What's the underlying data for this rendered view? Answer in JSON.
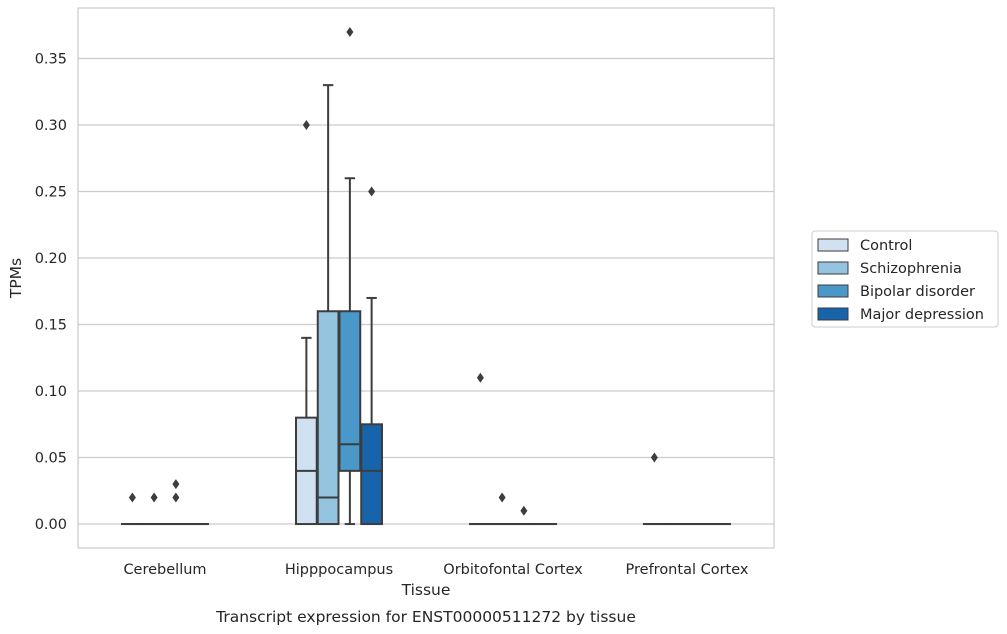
{
  "chart_data": {
    "type": "box",
    "title": "",
    "caption": "Transcript expression for ENST00000511272 by tissue",
    "xlabel": "Tissue",
    "ylabel": "TPMs",
    "ylim": [
      -0.018,
      0.388
    ],
    "yticks": [
      "0.00",
      "0.05",
      "0.10",
      "0.15",
      "0.20",
      "0.25",
      "0.30",
      "0.35"
    ],
    "grid": "horizontal",
    "legend_position": "right",
    "categories": [
      "Cerebellum",
      "Hipppocampus",
      "Orbitofontal Cortex",
      "Prefrontal Cortex"
    ],
    "series": [
      {
        "name": "Control",
        "color": "#d0e1f2",
        "boxes": [
          {
            "q1": 0,
            "median": 0,
            "q3": 0,
            "whisker_low": 0,
            "whisker_high": 0,
            "outliers": [
              0.02
            ]
          },
          {
            "q1": 0,
            "median": 0.04,
            "q3": 0.08,
            "whisker_low": 0,
            "whisker_high": 0.14,
            "outliers": [
              0.3
            ]
          },
          {
            "q1": 0,
            "median": 0,
            "q3": 0,
            "whisker_low": 0,
            "whisker_high": 0,
            "outliers": [
              0.11
            ]
          },
          {
            "q1": 0,
            "median": 0,
            "q3": 0,
            "whisker_low": 0,
            "whisker_high": 0,
            "outliers": [
              0.05
            ]
          }
        ]
      },
      {
        "name": "Schizophrenia",
        "color": "#94c4df",
        "boxes": [
          {
            "q1": 0,
            "median": 0,
            "q3": 0,
            "whisker_low": 0,
            "whisker_high": 0,
            "outliers": [
              0.02
            ]
          },
          {
            "q1": 0,
            "median": 0.02,
            "q3": 0.16,
            "whisker_low": 0,
            "whisker_high": 0.33,
            "outliers": []
          },
          {
            "q1": 0,
            "median": 0,
            "q3": 0,
            "whisker_low": 0,
            "whisker_high": 0,
            "outliers": [
              0.02
            ]
          },
          {
            "q1": 0,
            "median": 0,
            "q3": 0,
            "whisker_low": 0,
            "whisker_high": 0,
            "outliers": []
          }
        ]
      },
      {
        "name": "Bipolar disorder",
        "color": "#4a98c9",
        "boxes": [
          {
            "q1": 0,
            "median": 0,
            "q3": 0,
            "whisker_low": 0,
            "whisker_high": 0,
            "outliers": [
              0.02,
              0.03
            ]
          },
          {
            "q1": 0.04,
            "median": 0.06,
            "q3": 0.16,
            "whisker_low": 0,
            "whisker_high": 0.26,
            "outliers": [
              0.37
            ]
          },
          {
            "q1": 0,
            "median": 0,
            "q3": 0,
            "whisker_low": 0,
            "whisker_high": 0,
            "outliers": [
              0.01
            ]
          },
          {
            "q1": 0,
            "median": 0,
            "q3": 0,
            "whisker_low": 0,
            "whisker_high": 0,
            "outliers": []
          }
        ]
      },
      {
        "name": "Major depression",
        "color": "#1764ab",
        "boxes": [
          {
            "q1": 0,
            "median": 0,
            "q3": 0,
            "whisker_low": 0,
            "whisker_high": 0,
            "outliers": []
          },
          {
            "q1": 0,
            "median": 0.04,
            "q3": 0.075,
            "whisker_low": 0,
            "whisker_high": 0.17,
            "outliers": [
              0.25
            ]
          },
          {
            "q1": 0,
            "median": 0,
            "q3": 0,
            "whisker_low": 0,
            "whisker_high": 0,
            "outliers": []
          },
          {
            "q1": 0,
            "median": 0,
            "q3": 0,
            "whisker_low": 0,
            "whisker_high": 0,
            "outliers": []
          }
        ]
      }
    ]
  }
}
